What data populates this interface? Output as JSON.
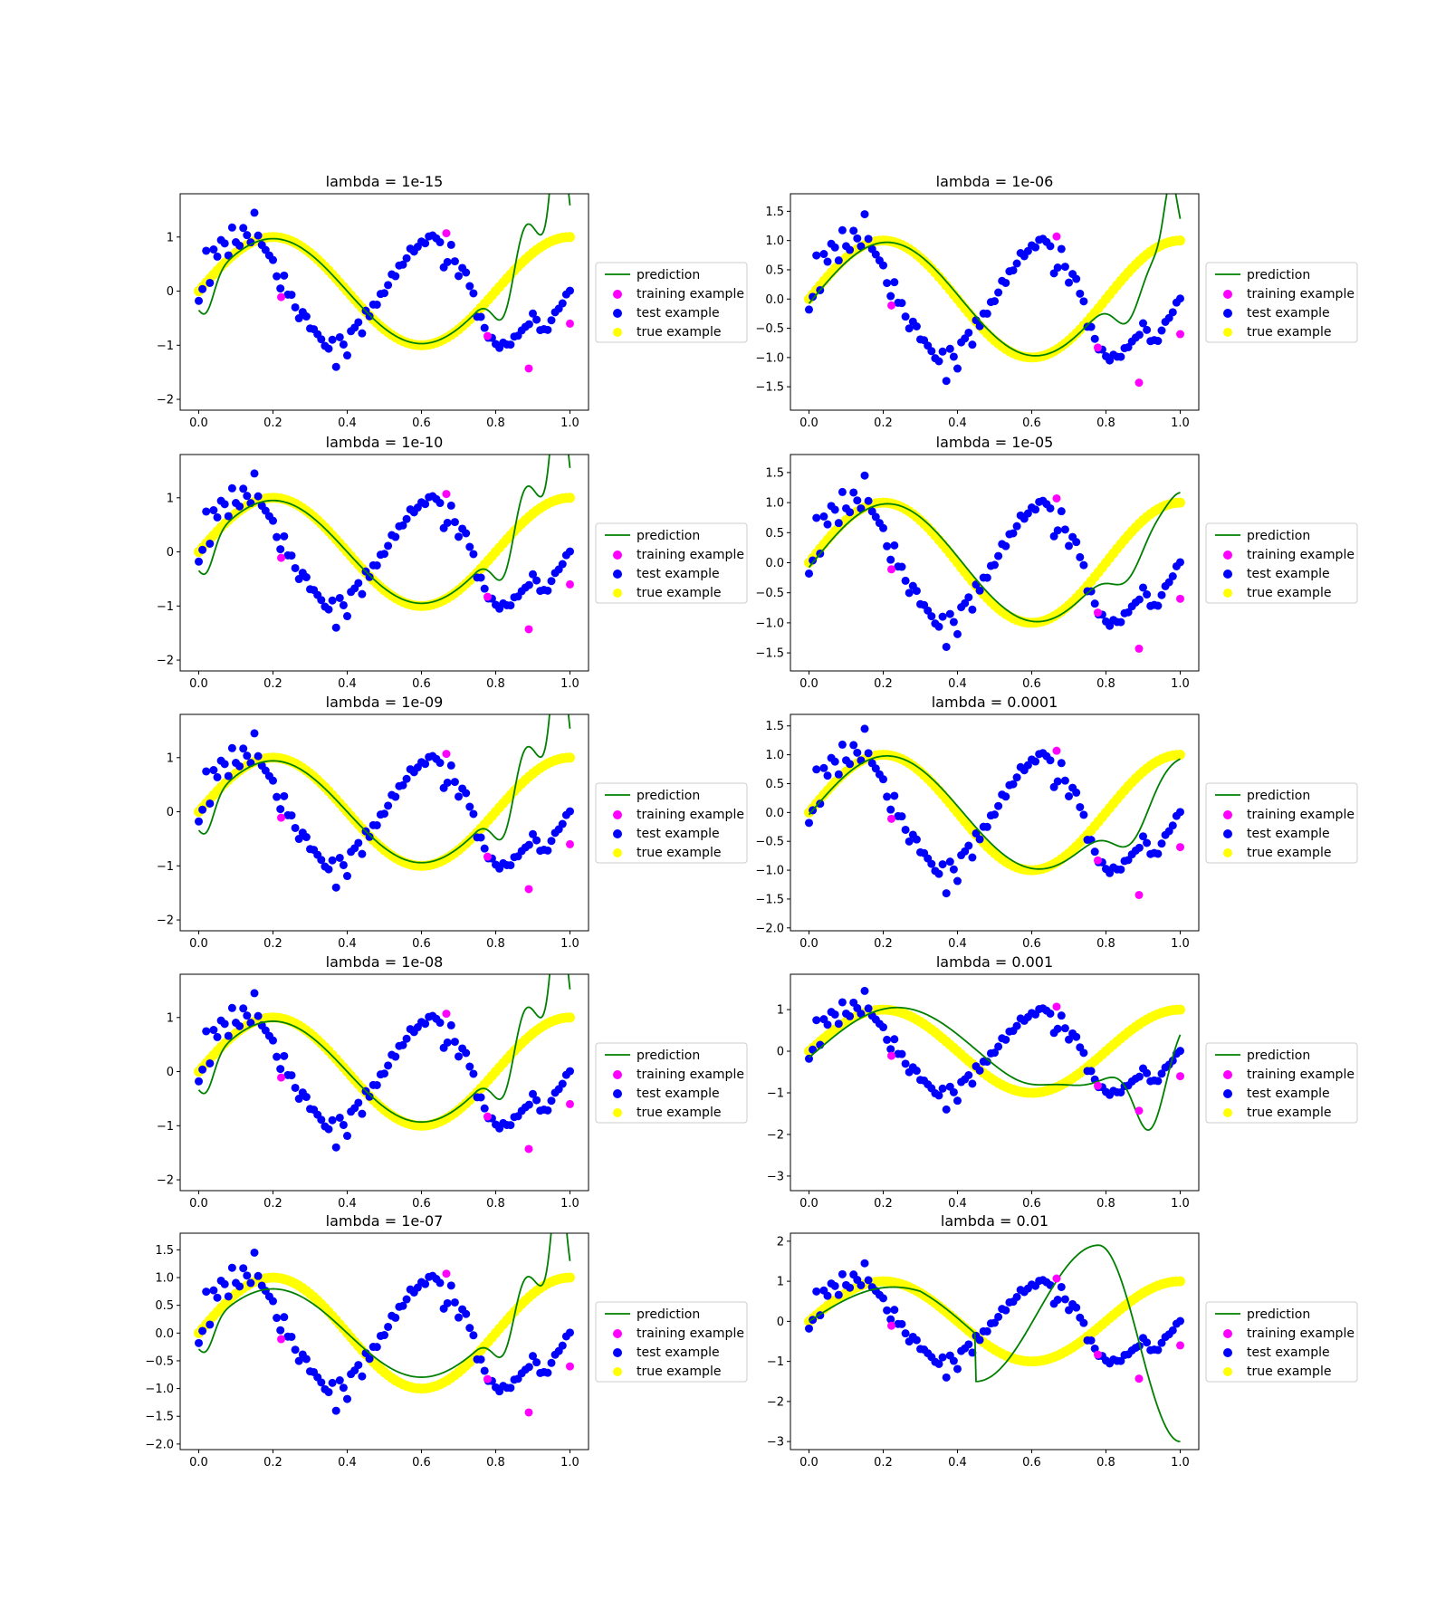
{
  "legend": {
    "labels": [
      "prediction",
      "training example",
      "test example",
      "true example"
    ],
    "placement": "outside-right"
  },
  "colors": {
    "prediction": "#008000",
    "training": "#ff00ff",
    "test": "#0000ff",
    "true": "#ffff00"
  },
  "chart_data": [
    {
      "type": "scatter",
      "title": "lambda = 1e-15",
      "xlim": [
        -0.05,
        1.05
      ],
      "ylim": [
        -2.2,
        1.8
      ],
      "yticks": [
        -2,
        -1,
        0,
        1
      ],
      "curve": "A",
      "amp": 1.0
    },
    {
      "type": "scatter",
      "title": "lambda = 1e-06",
      "xlim": [
        -0.05,
        1.05
      ],
      "ylim": [
        -1.9,
        1.8
      ],
      "yticks": [
        -1.5,
        -1.0,
        -0.5,
        0.0,
        0.5,
        1.0,
        1.5
      ],
      "curve": "B",
      "amp": 1.0
    },
    {
      "type": "scatter",
      "title": "lambda = 1e-10",
      "xlim": [
        -0.05,
        1.05
      ],
      "ylim": [
        -2.2,
        1.8
      ],
      "yticks": [
        -2,
        -1,
        0,
        1
      ],
      "curve": "A",
      "amp": 0.98
    },
    {
      "type": "scatter",
      "title": "lambda = 1e-05",
      "xlim": [
        -0.05,
        1.05
      ],
      "ylim": [
        -1.8,
        1.8
      ],
      "yticks": [
        -1.5,
        -1.0,
        -0.5,
        0.0,
        0.5,
        1.0,
        1.5
      ],
      "curve": "C",
      "amp": 1.0
    },
    {
      "type": "scatter",
      "title": "lambda = 1e-09",
      "xlim": [
        -0.05,
        1.05
      ],
      "ylim": [
        -2.2,
        1.8
      ],
      "yticks": [
        -2,
        -1,
        0,
        1
      ],
      "curve": "A",
      "amp": 0.97
    },
    {
      "type": "scatter",
      "title": "lambda = 0.0001",
      "xlim": [
        -0.05,
        1.05
      ],
      "ylim": [
        -2.05,
        1.7
      ],
      "yticks": [
        -2.0,
        -1.5,
        -1.0,
        -0.5,
        0.0,
        0.5,
        1.0,
        1.5
      ],
      "curve": "D",
      "amp": 1.0
    },
    {
      "type": "scatter",
      "title": "lambda = 1e-08",
      "xlim": [
        -0.05,
        1.05
      ],
      "ylim": [
        -2.2,
        1.8
      ],
      "yticks": [
        -2,
        -1,
        0,
        1
      ],
      "curve": "A",
      "amp": 0.96
    },
    {
      "type": "scatter",
      "title": "lambda = 0.001",
      "xlim": [
        -0.05,
        1.05
      ],
      "ylim": [
        -3.35,
        1.85
      ],
      "yticks": [
        -3,
        -2,
        -1,
        0,
        1
      ],
      "curve": "E",
      "amp": 1.0
    },
    {
      "type": "scatter",
      "title": "lambda = 1e-07",
      "xlim": [
        -0.05,
        1.05
      ],
      "ylim": [
        -2.1,
        1.8
      ],
      "yticks": [
        -2.0,
        -1.5,
        -1.0,
        -0.5,
        0.0,
        0.5,
        1.0,
        1.5
      ],
      "curve": "A",
      "amp": 0.82
    },
    {
      "type": "scatter",
      "title": "lambda = 0.01",
      "xlim": [
        -0.05,
        1.05
      ],
      "ylim": [
        -3.2,
        2.2
      ],
      "yticks": [
        -3,
        -2,
        -1,
        0,
        1,
        2
      ],
      "curve": "F",
      "amp": 1.0
    }
  ],
  "xticks": [
    0.0,
    0.2,
    0.4,
    0.6,
    0.8,
    1.0
  ],
  "series_points": {
    "training_x": [
      0.222,
      0.667,
      0.778,
      0.889,
      1.0
    ],
    "training_y": [
      -0.11,
      1.07,
      -0.83,
      -1.43,
      -0.6
    ],
    "test_x": [
      0.0,
      0.01,
      0.02,
      0.03,
      0.04,
      0.05,
      0.06,
      0.07,
      0.08,
      0.09,
      0.1,
      0.11,
      0.12,
      0.13,
      0.14,
      0.15,
      0.16,
      0.17,
      0.18,
      0.19,
      0.2,
      0.21,
      0.22,
      0.23,
      0.24,
      0.25,
      0.26,
      0.27,
      0.28,
      0.29,
      0.3,
      0.31,
      0.32,
      0.33,
      0.34,
      0.35,
      0.36,
      0.37,
      0.38,
      0.39,
      0.4,
      0.41,
      0.42,
      0.43,
      0.44,
      0.45,
      0.46,
      0.47,
      0.48,
      0.49,
      0.5,
      0.51,
      0.52,
      0.53,
      0.54,
      0.55,
      0.56,
      0.57,
      0.58,
      0.59,
      0.6,
      0.61,
      0.62,
      0.63,
      0.64,
      0.65,
      0.66,
      0.67,
      0.68,
      0.69,
      0.7,
      0.71,
      0.72,
      0.73,
      0.74,
      0.75,
      0.76,
      0.77,
      0.78,
      0.79,
      0.8,
      0.81,
      0.82,
      0.83,
      0.84,
      0.85,
      0.86,
      0.87,
      0.88,
      0.89,
      0.9,
      0.91,
      0.92,
      0.93,
      0.94,
      0.95,
      0.96,
      0.97,
      0.98,
      0.99,
      1.0
    ],
    "test_y": [
      -0.12,
      0.05,
      0.71,
      0.2,
      0.77,
      0.59,
      0.98,
      0.87,
      0.6,
      1.2,
      0.88,
      0.9,
      1.18,
      1.0,
      0.95,
      1.45,
      0.98,
      0.89,
      0.75,
      0.6,
      0.6,
      0.25,
      0.11,
      0.3,
      -0.1,
      -0.02,
      -0.3,
      -0.55,
      -0.35,
      -0.48,
      -0.75,
      -0.68,
      -0.82,
      -0.83,
      -1.0,
      -1.1,
      -0.85,
      -1.4,
      -0.9,
      -0.95,
      -1.2,
      -0.8,
      -0.65,
      -0.6,
      -0.72,
      -0.35,
      -0.5,
      -0.2,
      -0.25,
      -0.1,
      0.0,
      0.1,
      0.25,
      0.3,
      0.45,
      0.55,
      0.62,
      0.75,
      0.78,
      0.82,
      0.87,
      0.92,
      1.0,
      0.97,
      1.0,
      0.88,
      0.5,
      0.55,
      0.82,
      0.6,
      0.28,
      0.38,
      0.38,
      0.08,
      -0.1,
      -0.45,
      -0.5,
      -0.62,
      -0.85,
      -0.9,
      -0.93,
      -1.05,
      -1.0,
      -0.95,
      -1.0,
      -0.9,
      -0.8,
      -0.75,
      -0.6,
      -0.6,
      -0.45,
      -0.48,
      -0.72,
      -0.75,
      -0.68,
      -0.55,
      -0.45,
      -0.3,
      -0.25,
      0.0,
      0.02
    ]
  }
}
